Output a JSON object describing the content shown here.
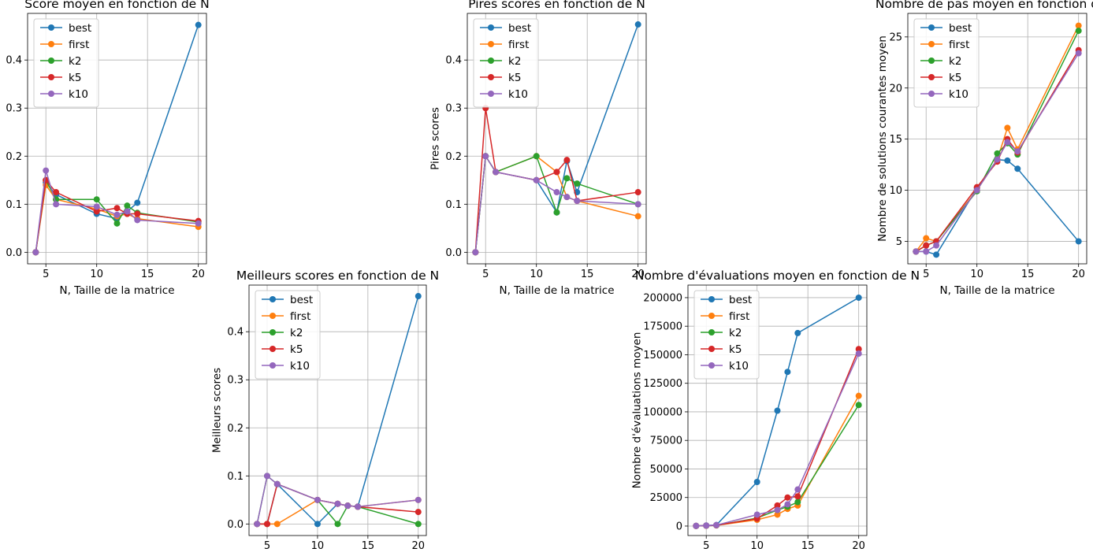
{
  "colors": {
    "best": "#1f77b4",
    "first": "#ff7f0e",
    "k2": "#2ca02c",
    "k5": "#d62728",
    "k10": "#9467bd",
    "grid": "#b0b0b0"
  },
  "chart_data": [
    {
      "id": "score-moyen",
      "type": "line",
      "title": "Score moyen en fonction de N",
      "xlabel": "N, Taille de la matrice",
      "ylabel": "",
      "x": [
        4,
        5,
        6,
        10,
        12,
        13,
        14,
        20
      ],
      "xticks": [
        5,
        10,
        15,
        20
      ],
      "yticks": [
        0.0,
        0.1,
        0.2,
        0.3,
        0.4
      ],
      "ytick_labels": [
        "0.0",
        "0.1",
        "0.2",
        "0.3",
        "0.4"
      ],
      "xlim": [
        3.2,
        20.8
      ],
      "ylim": [
        -0.024,
        0.497
      ],
      "grid": true,
      "legend": "upper left",
      "series": [
        {
          "name": "best",
          "values": [
            0.0,
            0.145,
            0.12,
            0.08,
            0.07,
            0.085,
            0.103,
            0.473
          ]
        },
        {
          "name": "first",
          "values": [
            0.0,
            0.14,
            0.11,
            0.09,
            0.075,
            0.08,
            0.07,
            0.053
          ]
        },
        {
          "name": "k2",
          "values": [
            0.0,
            0.15,
            0.11,
            0.11,
            0.06,
            0.097,
            0.082,
            0.063
          ]
        },
        {
          "name": "k5",
          "values": [
            0.0,
            0.15,
            0.125,
            0.085,
            0.092,
            0.08,
            0.08,
            0.065
          ]
        },
        {
          "name": "k10",
          "values": [
            0.0,
            0.17,
            0.1,
            0.095,
            0.078,
            0.085,
            0.067,
            0.06
          ]
        }
      ]
    },
    {
      "id": "pires-scores",
      "type": "line",
      "title": "Pires scores en fonction de N",
      "xlabel": "N, Taille de la matrice",
      "ylabel": "Pires scores",
      "x": [
        4,
        5,
        6,
        10,
        12,
        13,
        14,
        20
      ],
      "xticks": [
        5,
        10,
        15,
        20
      ],
      "yticks": [
        0.0,
        0.1,
        0.2,
        0.3,
        0.4
      ],
      "ytick_labels": [
        "0.0",
        "0.1",
        "0.2",
        "0.3",
        "0.4"
      ],
      "xlim": [
        3.2,
        20.8
      ],
      "ylim": [
        -0.024,
        0.497
      ],
      "grid": true,
      "legend": "upper left",
      "series": [
        {
          "name": "best",
          "values": [
            0.0,
            0.2,
            0.167,
            0.15,
            0.083,
            0.19,
            0.125,
            0.474
          ]
        },
        {
          "name": "first",
          "values": [
            0.0,
            0.2,
            0.167,
            0.2,
            0.167,
            0.115,
            0.107,
            0.075
          ]
        },
        {
          "name": "k2",
          "values": [
            0.0,
            0.2,
            0.167,
            0.2,
            0.083,
            0.154,
            0.143,
            0.1
          ]
        },
        {
          "name": "k5",
          "values": [
            0.0,
            0.3,
            0.167,
            0.15,
            0.167,
            0.192,
            0.107,
            0.125
          ]
        },
        {
          "name": "k10",
          "values": [
            0.0,
            0.2,
            0.167,
            0.15,
            0.125,
            0.115,
            0.107,
            0.1
          ]
        }
      ]
    },
    {
      "id": "nombre-de-pas",
      "type": "line",
      "title": "Nombre de pas moyen en fonction de N",
      "xlabel": "N, Taille de la matrice",
      "ylabel": "Nombre de solutions courantes moyen",
      "x": [
        4,
        5,
        6,
        10,
        12,
        13,
        14,
        20
      ],
      "xticks": [
        5,
        10,
        15,
        20
      ],
      "yticks": [
        5,
        10,
        15,
        20,
        25
      ],
      "ytick_labels": [
        "5",
        "10",
        "15",
        "20",
        "25"
      ],
      "xlim": [
        3.2,
        20.8
      ],
      "ylim": [
        2.8,
        27.3
      ],
      "grid": true,
      "legend": "upper left",
      "series": [
        {
          "name": "best",
          "values": [
            4.0,
            4.0,
            3.7,
            10.2,
            13.0,
            12.9,
            12.1,
            5.0
          ]
        },
        {
          "name": "first",
          "values": [
            4.0,
            5.3,
            5.0,
            10.0,
            13.0,
            16.1,
            14.0,
            26.1
          ]
        },
        {
          "name": "k2",
          "values": [
            4.0,
            4.6,
            5.0,
            9.9,
            13.6,
            14.6,
            13.5,
            25.6
          ]
        },
        {
          "name": "k5",
          "values": [
            4.0,
            4.6,
            5.0,
            10.3,
            12.8,
            15.0,
            13.7,
            23.7
          ]
        },
        {
          "name": "k10",
          "values": [
            4.0,
            4.0,
            4.6,
            10.0,
            13.0,
            14.7,
            13.8,
            23.4
          ]
        }
      ]
    },
    {
      "id": "meilleurs-scores",
      "type": "line",
      "title": "Meilleurs scores en fonction de N",
      "xlabel": "",
      "ylabel": "Meilleurs scores",
      "x": [
        4,
        5,
        6,
        10,
        12,
        13,
        14,
        20
      ],
      "xticks": [
        5,
        10,
        15,
        20
      ],
      "yticks": [
        0.0,
        0.1,
        0.2,
        0.3,
        0.4
      ],
      "ytick_labels": [
        "0.0",
        "0.1",
        "0.2",
        "0.3",
        "0.4"
      ],
      "xlim": [
        3.2,
        20.8
      ],
      "ylim": [
        -0.024,
        0.497
      ],
      "grid": true,
      "legend": "upper left",
      "series": [
        {
          "name": "best",
          "values": [
            0.0,
            0.0,
            0.083,
            0.0,
            0.042,
            0.038,
            0.036,
            0.474
          ]
        },
        {
          "name": "first",
          "values": [
            0.0,
            0.0,
            0.0,
            0.05,
            0.042,
            0.038,
            0.036,
            0.05
          ]
        },
        {
          "name": "k2",
          "values": [
            0.0,
            0.1,
            0.083,
            0.05,
            0.0,
            0.038,
            0.036,
            0.0
          ]
        },
        {
          "name": "k5",
          "values": [
            0.0,
            0.0,
            0.083,
            0.05,
            0.042,
            0.038,
            0.036,
            0.025
          ]
        },
        {
          "name": "k10",
          "values": [
            0.0,
            0.1,
            0.083,
            0.05,
            0.042,
            0.038,
            0.036,
            0.05
          ]
        }
      ]
    },
    {
      "id": "nombre-evaluations",
      "type": "line",
      "title": "Nombre d'évaluations moyen en fonction de N",
      "xlabel": "",
      "ylabel": "Nombre d'évaluations moyen",
      "x": [
        4,
        5,
        6,
        10,
        12,
        13,
        14,
        20
      ],
      "xticks": [
        5,
        10,
        15,
        20
      ],
      "yticks": [
        0,
        25000,
        50000,
        75000,
        100000,
        125000,
        150000,
        175000,
        200000
      ],
      "ytick_labels": [
        "0",
        "25000",
        "50000",
        "75000",
        "100000",
        "125000",
        "150000",
        "175000",
        "200000"
      ],
      "xlim": [
        3.2,
        20.8
      ],
      "ylim": [
        -8300,
        211000
      ],
      "grid": true,
      "legend": "upper left",
      "series": [
        {
          "name": "best",
          "values": [
            150,
            450,
            900,
            38600,
            101000,
            135000,
            169000,
            200000
          ]
        },
        {
          "name": "first",
          "values": [
            100,
            300,
            600,
            5500,
            10000,
            15000,
            18000,
            114000
          ]
        },
        {
          "name": "k2",
          "values": [
            100,
            300,
            600,
            7000,
            14000,
            17000,
            21000,
            106000
          ]
        },
        {
          "name": "k5",
          "values": [
            120,
            350,
            700,
            6500,
            18000,
            25000,
            26000,
            155000
          ]
        },
        {
          "name": "k10",
          "values": [
            140,
            400,
            800,
            10000,
            14000,
            19000,
            32000,
            151000
          ]
        }
      ]
    }
  ]
}
